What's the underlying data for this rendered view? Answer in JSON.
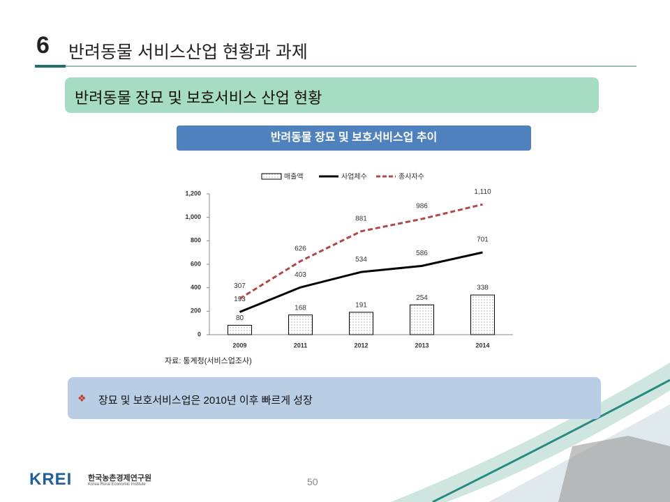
{
  "header": {
    "number": "6",
    "title": "반려동물 서비스산업 현황과 과제"
  },
  "section_title": "반려동물 장묘 및 보호서비스 산업 현황",
  "chart_title": "반려동물 장묘 및 보호서비스업 추이",
  "chart_data": {
    "type": "bar",
    "categories": [
      "2009",
      "2011",
      "2012",
      "2013",
      "2014"
    ],
    "series": [
      {
        "name": "매출액",
        "type": "bar",
        "color": "#000000",
        "values": [
          80,
          168,
          191,
          254,
          338
        ]
      },
      {
        "name": "사업체수",
        "type": "line",
        "color": "#000000",
        "line_style": "solid",
        "values": [
          193,
          403,
          534,
          586,
          701
        ]
      },
      {
        "name": "종사자수",
        "type": "line",
        "color": "#b0484a",
        "line_style": "dashed",
        "values": [
          307,
          626,
          881,
          986,
          1110
        ],
        "value_labels": [
          "307",
          "626",
          "881",
          "986",
          "1,110"
        ]
      }
    ],
    "ylim": [
      0,
      1200
    ],
    "yticks": [
      0,
      200,
      400,
      600,
      800,
      {
        "value": 1000,
        "label": "1,000"
      },
      {
        "value": 1200,
        "label": "1,200"
      }
    ],
    "legend": "top"
  },
  "source": "자료: 통계청(서비스업조사)",
  "note": {
    "bullet": "❖",
    "text": "장묘 및 보호서비스업은 2010년 이후 빠르게 성장"
  },
  "page_number": "50",
  "logo": {
    "mark": "KREI",
    "name": "한국농촌경제연구원",
    "english": "Korea Rural Economic Institute"
  }
}
